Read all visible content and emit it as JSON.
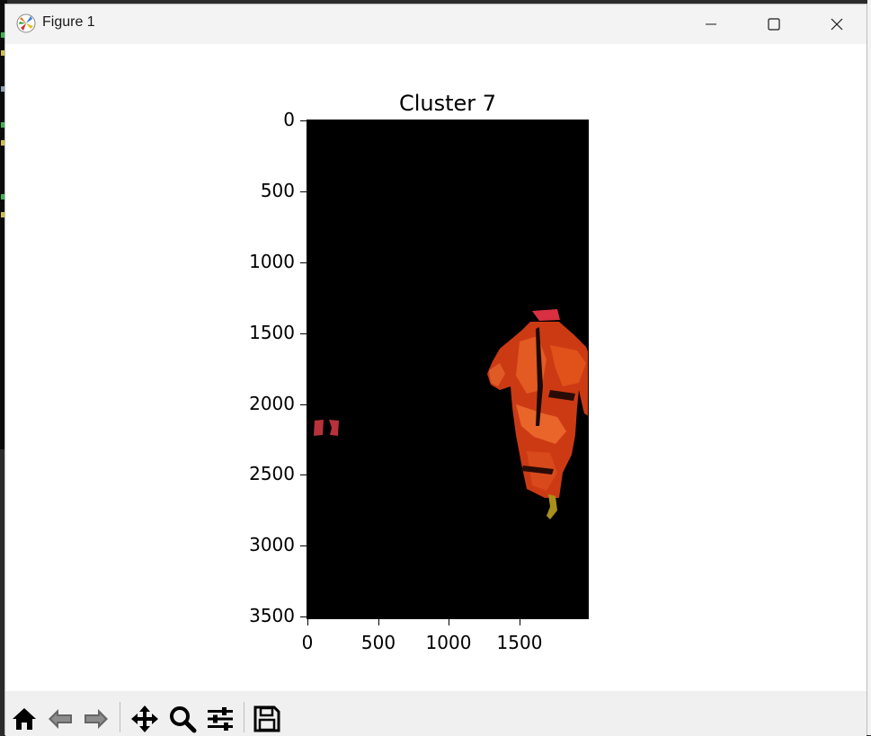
{
  "window": {
    "title": "Figure 1"
  },
  "chart_data": {
    "type": "image",
    "title": "Cluster 7",
    "xlabel": "",
    "ylabel": "",
    "xlim": [
      0,
      2000
    ],
    "ylim": [
      3550,
      0
    ],
    "x_ticks": [
      "0",
      "500",
      "1000",
      "1500"
    ],
    "y_ticks": [
      "0",
      "500",
      "1000",
      "1500",
      "2000",
      "2500",
      "3000",
      "3500"
    ],
    "background_color": "#000000",
    "subject_color": "#e0401a"
  },
  "toolbar": {
    "tools": [
      "home-icon",
      "back-arrow-icon",
      "forward-arrow-icon",
      "pan-icon",
      "zoom-icon",
      "configure-subplots-icon",
      "save-icon"
    ]
  }
}
